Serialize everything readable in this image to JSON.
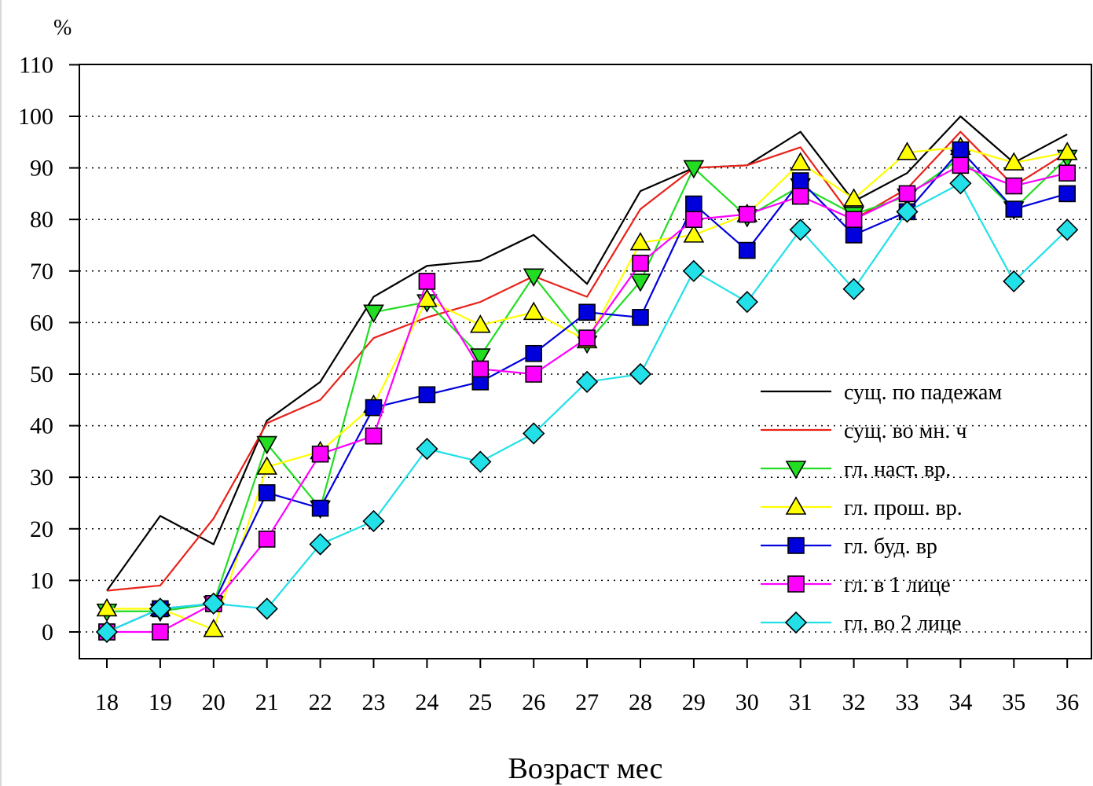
{
  "chart_data": {
    "type": "line",
    "ylabel": "%",
    "xlabel": "Возраст мес",
    "ylim": [
      0,
      110
    ],
    "yticks": [
      "0",
      "10",
      "20",
      "30",
      "40",
      "50",
      "60",
      "70",
      "80",
      "90",
      "100",
      "110"
    ],
    "grid": "horizontal dotted",
    "legend_placement": "bottom-right",
    "categories": [
      "18",
      "19",
      "20",
      "21",
      "22",
      "23",
      "24",
      "25",
      "26",
      "27",
      "28",
      "29",
      "30",
      "31",
      "32",
      "33",
      "34",
      "35",
      "36"
    ],
    "series": [
      {
        "name": "сущ. по падежам",
        "color": "#000000",
        "marker": "none",
        "values": [
          8,
          22.5,
          17,
          41,
          48.5,
          65,
          71,
          72,
          77,
          67.5,
          85.5,
          90,
          90.5,
          97,
          83.5,
          89,
          100,
          91,
          96.5
        ]
      },
      {
        "name": "сущ. во мн. ч",
        "color": "#e8221a",
        "marker": "none",
        "values": [
          8,
          9,
          22,
          40.5,
          45,
          57,
          61,
          64,
          69,
          65,
          82,
          90,
          90.5,
          94,
          80,
          86,
          97,
          86.5,
          93
        ]
      },
      {
        "name": "гл. наст. вр.",
        "color": "#22dd22",
        "marker": "triangle-down",
        "values": [
          4,
          4,
          5.5,
          36.5,
          24,
          62,
          64,
          53.5,
          69,
          56,
          68,
          90,
          80.5,
          86.5,
          81,
          84.5,
          92,
          82,
          92
        ]
      },
      {
        "name": "гл. прош. вр.",
        "color": "#ffff00",
        "marker": "triangle-up",
        "values": [
          4.5,
          4.5,
          0.5,
          32,
          35,
          44,
          64.5,
          59.5,
          62,
          56.5,
          75.5,
          77,
          81,
          91,
          84,
          93,
          94,
          91,
          93
        ]
      },
      {
        "name": "гл. буд. вр",
        "color": "#0000dd",
        "marker": "square",
        "values": [
          0,
          4.5,
          5.5,
          27,
          24,
          43.5,
          46,
          48.5,
          54,
          62,
          61,
          83,
          74,
          87.5,
          77,
          81.5,
          93.5,
          82,
          85
        ]
      },
      {
        "name": "гл. в 1 лице",
        "color": "#ff00ff",
        "marker": "square",
        "values": [
          0,
          0,
          5.5,
          18,
          34.5,
          38,
          68,
          51,
          50,
          57,
          71.5,
          80,
          81,
          84.5,
          80,
          85,
          90.5,
          86.5,
          89
        ]
      },
      {
        "name": "гл. во 2 лице",
        "color": "#22e0e8",
        "marker": "diamond",
        "values": [
          0,
          4.5,
          5.5,
          4.5,
          17,
          21.5,
          35.5,
          33,
          38.5,
          48.5,
          50,
          70,
          64,
          78,
          66.5,
          81.5,
          87,
          68,
          78
        ]
      }
    ]
  }
}
